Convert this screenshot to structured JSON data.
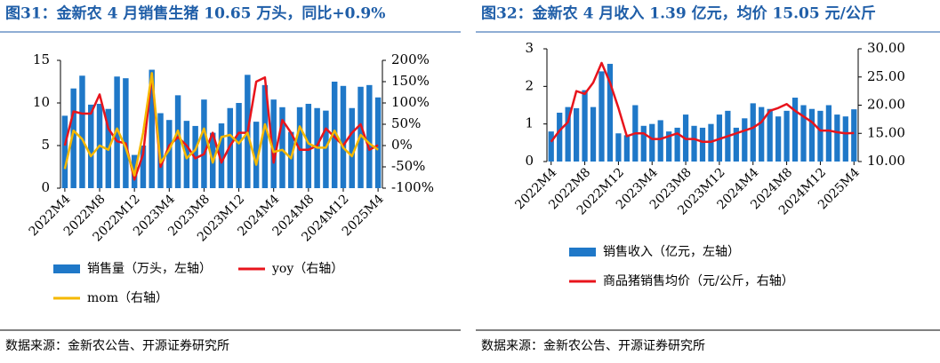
{
  "chart_data": [
    {
      "type": "combo",
      "title": "图31：金新农 4 月销售生猪 10.65 万头，同比+0.9%",
      "categories": [
        "2022M4",
        null,
        null,
        null,
        "2022M8",
        null,
        null,
        null,
        "2022M12",
        null,
        null,
        null,
        "2023M4",
        null,
        null,
        null,
        "2023M8",
        null,
        null,
        null,
        "2023M12",
        null,
        null,
        null,
        "2024M4",
        null,
        null,
        null,
        "2024M8",
        null,
        null,
        null,
        "2024M12",
        null,
        null,
        null,
        "2025M4"
      ],
      "ylim": [
        0,
        15
      ],
      "yticks": [
        0,
        5,
        10,
        15
      ],
      "y2lim": [
        -100,
        200
      ],
      "y2ticks": [
        {
          "value": -100,
          "label": "-100%"
        },
        {
          "value": -50,
          "label": "-50%"
        },
        {
          "value": 0,
          "label": "0%"
        },
        {
          "value": 50,
          "label": "50%"
        },
        {
          "value": 100,
          "label": "100%"
        },
        {
          "value": 150,
          "label": "150%"
        },
        {
          "value": 200,
          "label": "200%"
        }
      ],
      "series": [
        {
          "name": "销售量（万头，左轴）",
          "type": "bar",
          "color": "#1f78c8",
          "values": [
            8.5,
            11.7,
            13.2,
            9.8,
            9.9,
            9.3,
            13.1,
            12.9,
            3.9,
            5.0,
            13.9,
            8.8,
            8.0,
            10.9,
            7.9,
            7.3,
            10.4,
            6.5,
            7.6,
            9.4,
            10.0,
            13.3,
            7.8,
            12.1,
            10.4,
            9.5,
            6.6,
            9.5,
            9.9,
            9.4,
            9.1,
            12.5,
            12.0,
            9.4,
            11.9,
            12.1,
            10.65
          ]
        },
        {
          "name": "yoy（右轴）",
          "type": "line",
          "axis": "y2",
          "color": "#e8141c",
          "values": [
            0,
            80,
            75,
            75,
            120,
            40,
            10,
            5,
            -80,
            -20,
            165,
            -50,
            0,
            20,
            0,
            -30,
            -20,
            30,
            -40,
            0,
            30,
            30,
            150,
            160,
            -40,
            60,
            30,
            -10,
            -10,
            0,
            40,
            20,
            0,
            30,
            50,
            -10,
            0.9
          ]
        },
        {
          "name": "mom（右轴）",
          "type": "line",
          "axis": "y2",
          "color": "#f5b800",
          "values": [
            -55,
            35,
            15,
            -25,
            0,
            -10,
            40,
            -5,
            -70,
            30,
            170,
            -40,
            -10,
            35,
            -30,
            -10,
            40,
            -40,
            20,
            25,
            5,
            30,
            -45,
            50,
            -15,
            -10,
            -30,
            45,
            5,
            -5,
            -5,
            35,
            -5,
            -25,
            25,
            5,
            -10
          ]
        }
      ],
      "source": "数据来源：金新农公告、开源证券研究所"
    },
    {
      "type": "combo",
      "title": "图32：金新农 4 月收入 1.39 亿元，均价 15.05 元/公斤",
      "categories": [
        "2022M4",
        null,
        null,
        null,
        "2022M8",
        null,
        null,
        null,
        "2022M12",
        null,
        null,
        null,
        "2023M4",
        null,
        null,
        null,
        "2023M8",
        null,
        null,
        null,
        "2023M12",
        null,
        null,
        null,
        "2024M4",
        null,
        null,
        null,
        "2024M8",
        null,
        null,
        null,
        "2024M12",
        null,
        null,
        null,
        "2025M4"
      ],
      "ylim": [
        0,
        3
      ],
      "yticks": [
        0,
        1,
        2,
        3
      ],
      "y2lim": [
        10,
        30
      ],
      "y2ticks": [
        {
          "value": 10,
          "label": "10.00"
        },
        {
          "value": 15,
          "label": "15.00"
        },
        {
          "value": 20,
          "label": "20.00"
        },
        {
          "value": 25,
          "label": "25.00"
        },
        {
          "value": 30,
          "label": "30.00"
        }
      ],
      "series": [
        {
          "name": "销售收入（亿元，左轴）",
          "type": "bar",
          "color": "#1f78c8",
          "values": [
            0.8,
            1.3,
            1.45,
            1.42,
            1.9,
            1.45,
            2.4,
            2.6,
            0.75,
            0.7,
            1.5,
            0.95,
            1.0,
            1.1,
            0.8,
            0.9,
            1.25,
            0.95,
            0.9,
            1.0,
            1.25,
            1.35,
            0.9,
            1.15,
            1.55,
            1.45,
            1.4,
            1.2,
            1.35,
            1.7,
            1.5,
            1.4,
            1.35,
            1.5,
            1.25,
            1.2,
            1.39
          ]
        },
        {
          "name": "商品猪销售均价（元/公斤，右轴）",
          "type": "line",
          "axis": "y2",
          "color": "#e8141c",
          "values": [
            13.5,
            15.5,
            17,
            22.5,
            22,
            24,
            27.5,
            24,
            19.5,
            14.5,
            15,
            15,
            14,
            14,
            14.5,
            15,
            14,
            14,
            13.5,
            13.5,
            14,
            14.5,
            15,
            15.5,
            16,
            17,
            19,
            19.5,
            20.2,
            19,
            18,
            17,
            15.5,
            15.5,
            15.2,
            15,
            15.05
          ]
        }
      ],
      "source": "数据来源：金新农公告、开源证券研究所"
    }
  ]
}
